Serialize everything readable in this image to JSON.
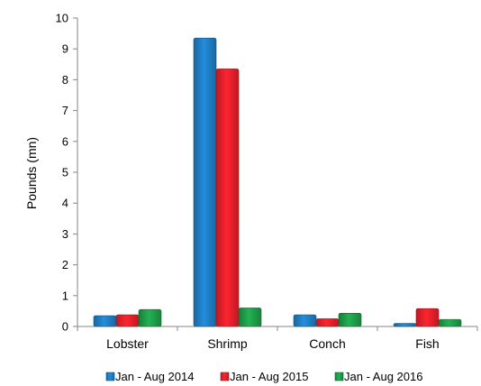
{
  "chart_data": {
    "type": "bar",
    "categories": [
      "Lobster",
      "Shrimp",
      "Conch",
      "Fish"
    ],
    "series": [
      {
        "name": "Jan - Aug 2014",
        "color": "#1f7fc4",
        "values": [
          0.35,
          9.35,
          0.38,
          0.1
        ]
      },
      {
        "name": "Jan - Aug 2015",
        "color": "#e8202a",
        "values": [
          0.38,
          8.35,
          0.25,
          0.58
        ]
      },
      {
        "name": "Jan - Aug 2016",
        "color": "#1e9e4a",
        "values": [
          0.55,
          0.6,
          0.43,
          0.23
        ]
      }
    ],
    "title": "",
    "xlabel": "",
    "ylabel": "Pounds (mn)",
    "ylim": [
      0,
      10
    ],
    "yticks": [
      0,
      1,
      2,
      3,
      4,
      5,
      6,
      7,
      8,
      9,
      10
    ],
    "grid": false,
    "legend": "bottom"
  }
}
